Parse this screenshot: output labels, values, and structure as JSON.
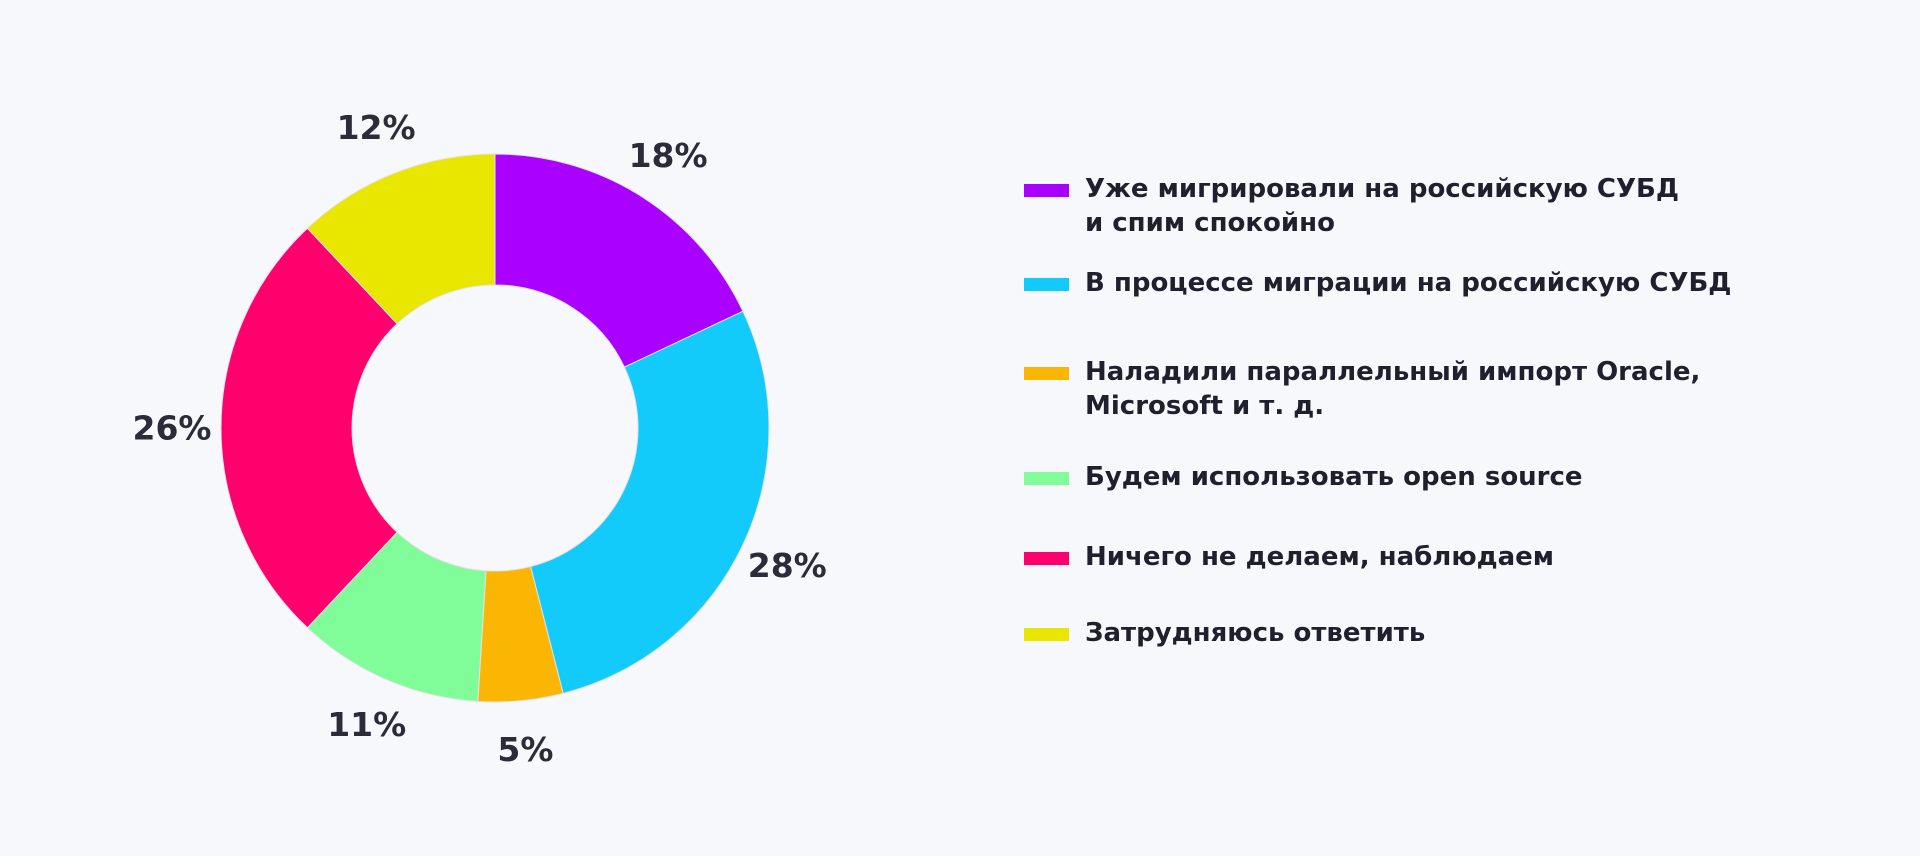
{
  "chart_data": {
    "type": "pie",
    "donut": true,
    "start_angle_deg": 0,
    "direction": "clockwise",
    "legend_position": "right",
    "slices": [
      {
        "label": "Уже мигрировали на российскую СУБД\nи спим спокойно",
        "value": 18,
        "value_label": "18%",
        "color": "#aa00ff"
      },
      {
        "label": "В процессе миграции на российскую СУБД",
        "value": 28,
        "value_label": "28%",
        "color": "#12cbfa"
      },
      {
        "label": "Наладили параллельный импорт Oracle,\nMicrosoft и т. д.",
        "value": 5,
        "value_label": "5%",
        "color": "#fbb603"
      },
      {
        "label": "Будем использовать open source",
        "value": 11,
        "value_label": "11%",
        "color": "#80fd98"
      },
      {
        "label": "Ничего не делаем, наблюдаем",
        "value": 26,
        "value_label": "26%",
        "color": "#ff006d"
      },
      {
        "label": "Затрудняюсь ответить",
        "value": 12,
        "value_label": "12%",
        "color": "#e9e700"
      }
    ]
  }
}
